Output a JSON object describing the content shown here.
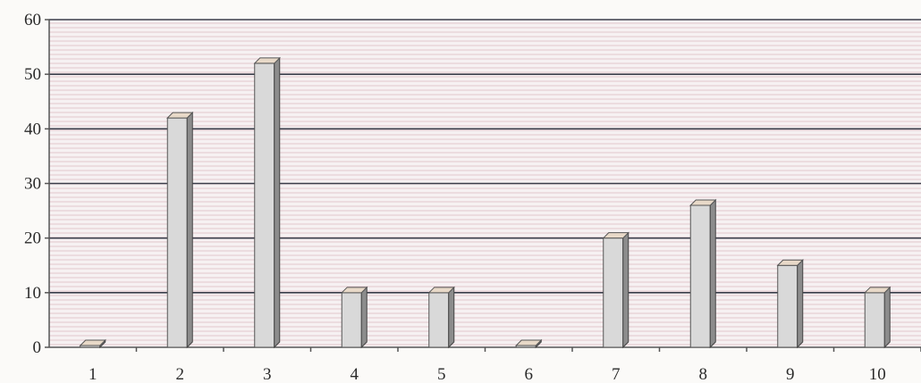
{
  "chart_data": {
    "type": "bar",
    "categories": [
      "1",
      "2",
      "3",
      "4",
      "5",
      "6",
      "7",
      "8",
      "9",
      "10"
    ],
    "values": [
      0,
      42,
      52,
      10,
      10,
      0,
      20,
      26,
      15,
      10
    ],
    "title": "",
    "xlabel": "",
    "ylabel": "",
    "ylim": [
      0,
      60
    ],
    "y_ticks": [
      "0",
      "10",
      "20",
      "30",
      "40",
      "50",
      "60"
    ],
    "grid": true,
    "style": "3d-column",
    "colors": {
      "bar_front": "#d9d9d9",
      "bar_side": "#8c8c8c",
      "bar_top": "#e8d9c8",
      "gridline": "#3a3d4a",
      "axis": "#555555",
      "plot_background": "#f6f1f2",
      "fine_lines": "#e3c7cc"
    }
  }
}
